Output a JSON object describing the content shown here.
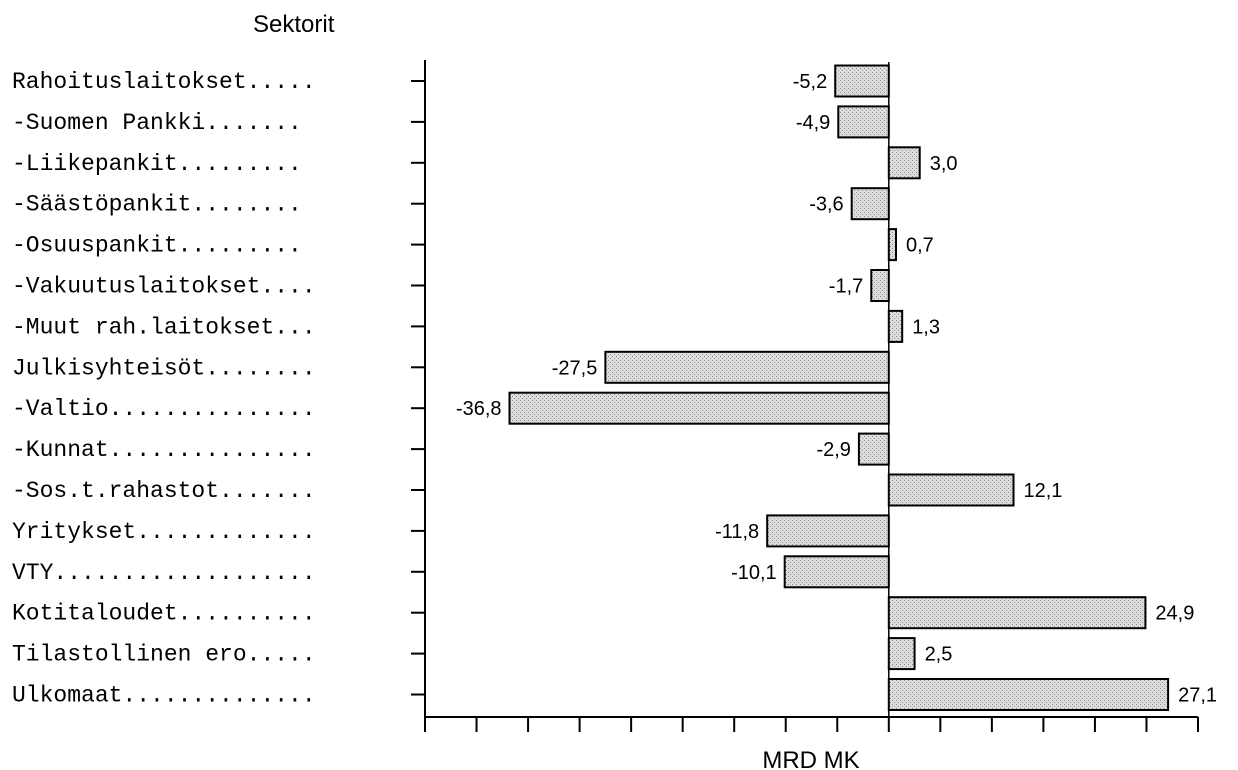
{
  "chart_data": {
    "type": "bar",
    "orientation": "horizontal",
    "title": "Sektorit",
    "xlabel": "MRD MK",
    "categories": [
      "Rahoituslaitokset.....",
      "-Suomen Pankki.......",
      "-Liikepankit.........",
      "-Säästöpankit........",
      "-Osuuspankit.........",
      "-Vakuutuslaitokset....",
      "-Muut rah.laitokset...",
      "Julkisyhteisöt........",
      "-Valtio...............",
      "-Kunnat...............",
      "-Sos.t.rahastot.......",
      "Yritykset.............",
      "VTY...................",
      "Kotitaloudet..........",
      "Tilastollinen ero.....",
      "Ulkomaat.............."
    ],
    "values": [
      -5.2,
      -4.9,
      3.0,
      -3.6,
      0.7,
      -1.7,
      1.3,
      -27.5,
      -36.8,
      -2.9,
      12.1,
      -11.8,
      -10.1,
      24.9,
      2.5,
      27.1
    ],
    "value_labels": [
      "-5,2",
      "-4,9",
      "3,0",
      "-3,6",
      "0,7",
      "-1,7",
      "1,3",
      "-27,5",
      "-36,8",
      "-2,9",
      "12,1",
      "-11,8",
      "-10,1",
      "24,9",
      "2,5",
      "27,1"
    ],
    "xlim": [
      -45,
      30
    ],
    "x_tick_step": 5,
    "grid": false
  }
}
